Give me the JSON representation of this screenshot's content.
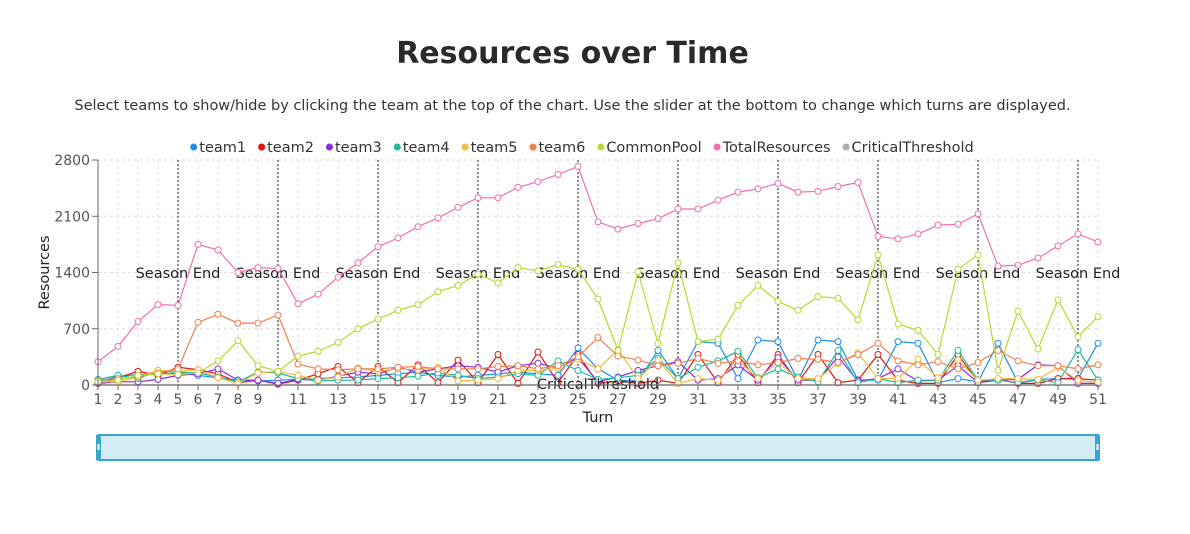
{
  "page": {
    "title": "Resources over Time",
    "subtitle": "Select teams to show/hide by clicking the team at the top of the chart. Use the slider at the bottom to change which turns are displayed."
  },
  "colors": {
    "team1": "#1f8ef1",
    "team2": "#e3120b",
    "team3": "#8a2be2",
    "team4": "#1abc9c",
    "team5": "#f6b93b",
    "team6": "#f07f4a",
    "CommonPool": "#b5d92c",
    "TotalResources": "#f06fae",
    "CriticalThreshold": "#b0aea8",
    "season": "#444444",
    "brush": "#3aa6d0"
  },
  "chart_data": {
    "type": "line",
    "xlabel": "Turn",
    "ylabel": "Resources",
    "xlim": [
      1,
      51
    ],
    "ylim": [
      0,
      2800
    ],
    "x_ticks": [
      1,
      2,
      3,
      4,
      5,
      6,
      7,
      8,
      9,
      11,
      13,
      15,
      17,
      19,
      21,
      23,
      25,
      27,
      29,
      31,
      33,
      35,
      37,
      39,
      41,
      43,
      45,
      47,
      49,
      51
    ],
    "y_ticks": [
      0,
      700,
      1400,
      2100,
      2800
    ],
    "grid": true,
    "legend_position": "top",
    "season_end_turns": [
      5,
      10,
      15,
      20,
      25,
      30,
      35,
      40,
      45,
      50
    ],
    "season_label": "Season End",
    "threshold_label": "CriticalThreshold",
    "x": [
      1,
      2,
      3,
      4,
      5,
      6,
      7,
      8,
      9,
      10,
      11,
      12,
      13,
      14,
      15,
      16,
      17,
      18,
      19,
      20,
      21,
      22,
      23,
      24,
      25,
      26,
      27,
      28,
      29,
      30,
      31,
      32,
      33,
      34,
      35,
      36,
      37,
      38,
      39,
      40,
      41,
      42,
      43,
      44,
      45,
      46,
      47,
      48,
      49,
      50,
      51
    ],
    "series": [
      {
        "name": "team1",
        "values": [
          40,
          110,
          130,
          140,
          150,
          120,
          90,
          60,
          50,
          60,
          70,
          80,
          90,
          100,
          120,
          140,
          160,
          120,
          100,
          120,
          140,
          160,
          140,
          120,
          460,
          200,
          60,
          50,
          430,
          80,
          540,
          520,
          80,
          560,
          540,
          60,
          560,
          540,
          60,
          60,
          540,
          520,
          30,
          80,
          40,
          520,
          30,
          70,
          80,
          80,
          520
        ]
      },
      {
        "name": "team2",
        "values": [
          20,
          90,
          170,
          120,
          220,
          190,
          140,
          30,
          60,
          10,
          60,
          140,
          230,
          30,
          230,
          30,
          250,
          30,
          310,
          30,
          380,
          20,
          410,
          30,
          380,
          20,
          50,
          20,
          60,
          20,
          380,
          30,
          380,
          30,
          380,
          30,
          380,
          30,
          60,
          380,
          60,
          20,
          20,
          380,
          40,
          70,
          20,
          20,
          80,
          80,
          60
        ]
      },
      {
        "name": "team3",
        "values": [
          20,
          40,
          40,
          70,
          120,
          140,
          200,
          60,
          60,
          20,
          70,
          60,
          110,
          160,
          140,
          220,
          160,
          200,
          240,
          220,
          160,
          240,
          270,
          210,
          340,
          40,
          100,
          180,
          240,
          290,
          60,
          80,
          250,
          60,
          340,
          60,
          60,
          350,
          50,
          80,
          200,
          50,
          60,
          240,
          30,
          60,
          70,
          250,
          240,
          20,
          20
        ]
      },
      {
        "name": "team4",
        "values": [
          70,
          120,
          80,
          180,
          160,
          150,
          100,
          40,
          160,
          150,
          80,
          50,
          60,
          60,
          80,
          90,
          110,
          150,
          120,
          80,
          100,
          140,
          120,
          300,
          180,
          70,
          90,
          120,
          330,
          80,
          220,
          300,
          420,
          90,
          200,
          100,
          40,
          430,
          30,
          80,
          30,
          60,
          60,
          430,
          60,
          60,
          30,
          60,
          30,
          440,
          60
        ]
      },
      {
        "name": "team5",
        "values": [
          40,
          40,
          100,
          180,
          170,
          190,
          90,
          20,
          150,
          170,
          120,
          60,
          100,
          210,
          170,
          200,
          190,
          220,
          50,
          60,
          80,
          180,
          180,
          210,
          320,
          200,
          440,
          80,
          310,
          20,
          80,
          60,
          310,
          80,
          280,
          80,
          80,
          270,
          400,
          80,
          80,
          320,
          90,
          310,
          60,
          80,
          80,
          70,
          220,
          60,
          30
        ]
      },
      {
        "name": "team6",
        "values": [
          60,
          80,
          100,
          150,
          200,
          780,
          880,
          770,
          770,
          870,
          260,
          200,
          190,
          200,
          200,
          220,
          230,
          200,
          200,
          200,
          230,
          240,
          200,
          240,
          350,
          590,
          360,
          310,
          240,
          270,
          330,
          270,
          300,
          250,
          280,
          330,
          320,
          280,
          380,
          520,
          300,
          250,
          290,
          200,
          280,
          430,
          300,
          240,
          240,
          200,
          250
        ]
      },
      {
        "name": "CommonPool",
        "values": [
          40,
          60,
          120,
          140,
          130,
          150,
          300,
          550,
          240,
          170,
          360,
          420,
          530,
          700,
          820,
          930,
          1000,
          1160,
          1240,
          1380,
          1270,
          1460,
          1420,
          1500,
          1440,
          1070,
          430,
          1410,
          520,
          1520,
          540,
          570,
          990,
          1240,
          1040,
          930,
          1100,
          1080,
          810,
          1620,
          760,
          680,
          380,
          1440,
          1620,
          180,
          920,
          450,
          1060,
          600,
          850
        ]
      },
      {
        "name": "TotalResources",
        "values": [
          290,
          480,
          790,
          1000,
          990,
          1750,
          1680,
          1400,
          1460,
          1450,
          1010,
          1130,
          1340,
          1520,
          1720,
          1830,
          1970,
          2080,
          2210,
          2330,
          2330,
          2460,
          2530,
          2620,
          2720,
          2030,
          1940,
          2010,
          2070,
          2190,
          2190,
          2300,
          2400,
          2440,
          2510,
          2400,
          2410,
          2470,
          2520,
          1850,
          1820,
          1880,
          1990,
          2000,
          2130,
          1480,
          1490,
          1580,
          1730,
          1880,
          1780
        ]
      },
      {
        "name": "CriticalThreshold",
        "values": [
          0,
          0,
          0,
          0,
          0,
          0,
          0,
          0,
          0,
          0,
          0,
          0,
          0,
          0,
          0,
          0,
          0,
          0,
          0,
          0,
          0,
          0,
          0,
          0,
          0,
          0,
          0,
          0,
          0,
          0,
          0,
          0,
          0,
          0,
          0,
          0,
          0,
          0,
          0,
          0,
          0,
          0,
          0,
          0,
          0,
          0,
          0,
          0,
          0,
          0,
          0
        ]
      }
    ]
  },
  "slider": {
    "min_turn": 1,
    "max_turn": 51
  }
}
